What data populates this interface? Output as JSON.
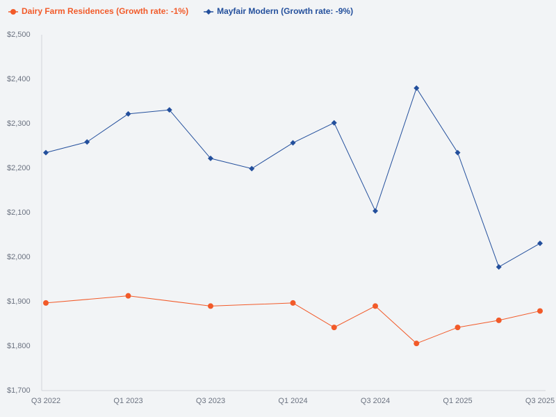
{
  "chart_data": {
    "type": "line",
    "categories": [
      "Q3 2022",
      null,
      "Q1 2023",
      null,
      "Q3 2023",
      null,
      "Q1 2024",
      null,
      "Q3 2024",
      null,
      "Q1 2025",
      null,
      "Q3 2025"
    ],
    "series": [
      {
        "name": "Dairy Farm Residences (Growth rate: -1%)",
        "color": "#f25a29",
        "marker": "circle",
        "values": [
          1897,
          null,
          1913,
          null,
          1890,
          null,
          1897,
          1842,
          1890,
          1806,
          1842,
          1858,
          1879
        ]
      },
      {
        "name": "Mayfair Modern (Growth rate: -9%)",
        "color": "#234f9c",
        "marker": "diamond",
        "values": [
          2235,
          2259,
          2322,
          2331,
          2222,
          2199,
          2257,
          2302,
          2104,
          2380,
          2235,
          1978,
          2031
        ]
      }
    ],
    "span_gaps": true,
    "ylim": [
      1700,
      2500
    ],
    "yticks": [
      {
        "value": 1700,
        "label": "$1,700"
      },
      {
        "value": 1800,
        "label": "$1,800"
      },
      {
        "value": 1900,
        "label": "$1,900"
      },
      {
        "value": 2000,
        "label": "$2,000"
      },
      {
        "value": 2100,
        "label": "$2,100"
      },
      {
        "value": 2200,
        "label": "$2,200"
      },
      {
        "value": 2300,
        "label": "$2,300"
      },
      {
        "value": 2400,
        "label": "$2,400"
      },
      {
        "value": 2500,
        "label": "$2,500"
      }
    ],
    "grid": false,
    "legend": "top-left"
  }
}
